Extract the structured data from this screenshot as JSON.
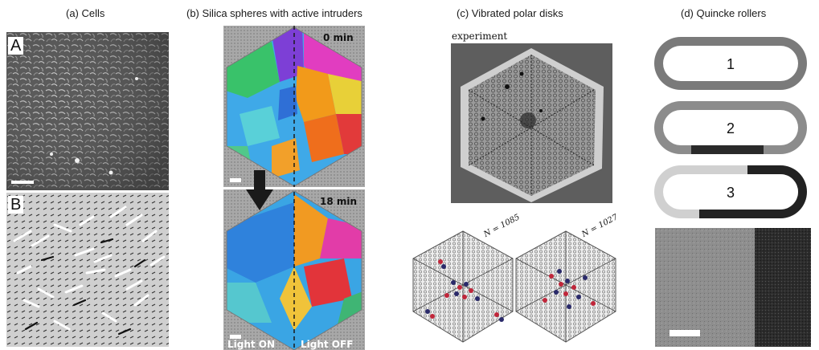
{
  "panels": {
    "a": {
      "caption": "(a) Cells",
      "labels": [
        "A",
        "B"
      ]
    },
    "b": {
      "caption": "(b) Silica spheres with active intruders",
      "top_time": "0 min",
      "bottom_time": "18 min",
      "light_on": "Light ON",
      "light_off": "Light OFF"
    },
    "c": {
      "caption": "(c) Vibrated polar disks",
      "experiment_label": "experiment",
      "sim_left_n": "N = 1085",
      "sim_right_n": "N = 1027"
    },
    "d": {
      "caption": "(d) Quincke rollers",
      "track_labels": [
        "1",
        "2",
        "3"
      ]
    }
  }
}
